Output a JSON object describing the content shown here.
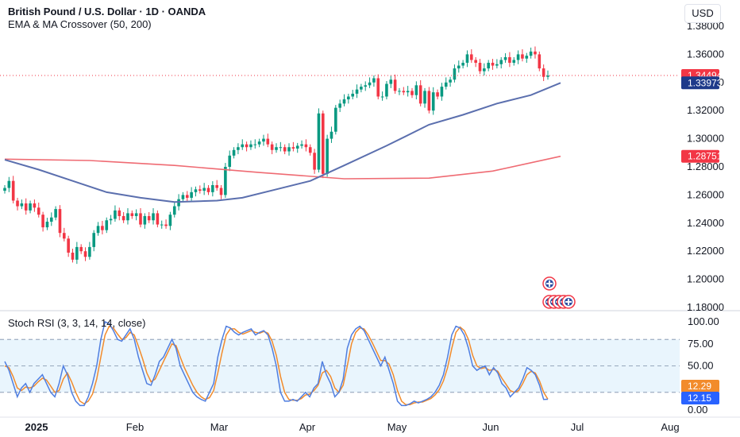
{
  "header": {
    "title": "British Pound / U.S. Dollar · 1D · OANDA",
    "indicator": "EMA & MA Crossover (50, 200)",
    "currency": "USD"
  },
  "stoch_legend": "Stoch RSI (3, 3, 14, 14, close)",
  "colors": {
    "up": "#089981",
    "down": "#f23645",
    "ema": "#5b6fae",
    "ma": "#ef6b73",
    "k": "#4f7ee0",
    "d": "#f28b2b",
    "band": "#e3f2fd"
  },
  "icons": [
    "uk-flag-icon"
  ],
  "chart_data": [
    {
      "type": "candlestick",
      "title": "British Pound / U.S. Dollar · 1D · OANDA",
      "ylim": [
        1.175,
        1.39
      ],
      "y_ticks": [
        "1.38000",
        "1.36000",
        "1.34000",
        "1.32000",
        "1.30000",
        "1.28000",
        "1.26000",
        "1.24000",
        "1.22000",
        "1.20000",
        "1.18000"
      ],
      "x_ticks": [
        "2025",
        "Feb",
        "Mar",
        "Apr",
        "May",
        "Jun",
        "Jul",
        "Aug"
      ],
      "closes": [
        1.265,
        1.27,
        1.256,
        1.252,
        1.254,
        1.249,
        1.254,
        1.251,
        1.246,
        1.237,
        1.241,
        1.244,
        1.25,
        1.233,
        1.229,
        1.219,
        1.214,
        1.223,
        1.22,
        1.216,
        1.223,
        1.233,
        1.238,
        1.235,
        1.242,
        1.243,
        1.249,
        1.245,
        1.242,
        1.247,
        1.245,
        1.247,
        1.239,
        1.245,
        1.242,
        1.247,
        1.239,
        1.239,
        1.238,
        1.246,
        1.252,
        1.257,
        1.26,
        1.258,
        1.262,
        1.264,
        1.263,
        1.265,
        1.262,
        1.267,
        1.265,
        1.26,
        1.28,
        1.288,
        1.292,
        1.294,
        1.296,
        1.294,
        1.296,
        1.296,
        1.298,
        1.3,
        1.296,
        1.292,
        1.294,
        1.294,
        1.291,
        1.294,
        1.293,
        1.295,
        1.296,
        1.294,
        1.29,
        1.278,
        1.318,
        1.275,
        1.3,
        1.305,
        1.322,
        1.325,
        1.328,
        1.33,
        1.332,
        1.335,
        1.337,
        1.338,
        1.34,
        1.343,
        1.33,
        1.33,
        1.339,
        1.342,
        1.334,
        1.334,
        1.333,
        1.334,
        1.331,
        1.338,
        1.325,
        1.334,
        1.32,
        1.333,
        1.33,
        1.337,
        1.34,
        1.342,
        1.35,
        1.352,
        1.354,
        1.36,
        1.356,
        1.354,
        1.348,
        1.35,
        1.354,
        1.352,
        1.353,
        1.356,
        1.358,
        1.354,
        1.356,
        1.36,
        1.357,
        1.359,
        1.362,
        1.36,
        1.35,
        1.344,
        1.3449
      ],
      "series": [
        {
          "name": "EMA (50)",
          "values_at": [
            [
              0,
              1.285
            ],
            [
              8,
              1.278
            ],
            [
              16,
              1.27
            ],
            [
              24,
              1.262
            ],
            [
              32,
              1.258
            ],
            [
              40,
              1.255
            ],
            [
              50,
              1.256
            ],
            [
              56,
              1.258
            ],
            [
              64,
              1.264
            ],
            [
              72,
              1.27
            ],
            [
              80,
              1.281
            ],
            [
              90,
              1.295
            ],
            [
              100,
              1.31
            ],
            [
              108,
              1.317
            ],
            [
              116,
              1.325
            ],
            [
              124,
              1.331
            ],
            [
              131,
              1.3397
            ]
          ]
        },
        {
          "name": "MA (200)",
          "values_at": [
            [
              0,
              1.2855
            ],
            [
              20,
              1.2845
            ],
            [
              40,
              1.281
            ],
            [
              60,
              1.276
            ],
            [
              80,
              1.2715
            ],
            [
              100,
              1.272
            ],
            [
              115,
              1.277
            ],
            [
              131,
              1.2875
            ]
          ]
        }
      ],
      "last_price": "1.34494",
      "ema_value": "1.33973",
      "ma_value": "1.28751",
      "annotations": [
        {
          "type": "event",
          "icon": "uk-flag-icon",
          "count": 1,
          "y": 1.197
        },
        {
          "type": "event",
          "icon": "uk-flag-icon",
          "count": 5,
          "y": 1.184
        }
      ]
    },
    {
      "type": "line",
      "title": "Stoch RSI (3, 3, 14, 14, close)",
      "ylim": [
        -5,
        105
      ],
      "y_ticks": [
        "100.00",
        "75.00",
        "50.00",
        "0.00"
      ],
      "bands": [
        20,
        50,
        80
      ],
      "series": [
        {
          "name": "K",
          "values": [
            55,
            45,
            30,
            15,
            25,
            30,
            20,
            30,
            35,
            40,
            30,
            20,
            15,
            30,
            50,
            40,
            20,
            10,
            5,
            5,
            15,
            30,
            50,
            80,
            100,
            98,
            90,
            80,
            78,
            85,
            92,
            80,
            60,
            45,
            30,
            28,
            40,
            55,
            60,
            70,
            80,
            70,
            50,
            40,
            30,
            20,
            15,
            12,
            10,
            20,
            30,
            60,
            80,
            95,
            93,
            88,
            85,
            88,
            90,
            92,
            85,
            88,
            90,
            85,
            70,
            50,
            20,
            10,
            10,
            12,
            10,
            15,
            20,
            15,
            25,
            30,
            55,
            40,
            30,
            15,
            20,
            35,
            70,
            85,
            92,
            95,
            90,
            80,
            70,
            60,
            50,
            60,
            45,
            30,
            10,
            5,
            5,
            7,
            10,
            8,
            10,
            12,
            15,
            20,
            28,
            40,
            60,
            85,
            95,
            93,
            85,
            70,
            50,
            45,
            48,
            50,
            40,
            48,
            42,
            30,
            25,
            15,
            20,
            25,
            35,
            48,
            45,
            40,
            28,
            12,
            12.15
          ]
        },
        {
          "name": "D",
          "values": [
            50,
            48,
            38,
            25,
            22,
            26,
            25,
            27,
            32,
            36,
            34,
            27,
            20,
            22,
            35,
            42,
            32,
            20,
            10,
            7,
            10,
            18,
            35,
            60,
            85,
            95,
            93,
            86,
            80,
            82,
            88,
            85,
            72,
            58,
            42,
            32,
            35,
            45,
            55,
            65,
            75,
            73,
            60,
            48,
            38,
            28,
            20,
            15,
            12,
            14,
            22,
            42,
            65,
            85,
            92,
            92,
            88,
            86,
            88,
            90,
            88,
            87,
            89,
            87,
            78,
            62,
            38,
            20,
            12,
            11,
            11,
            13,
            17,
            18,
            22,
            28,
            42,
            45,
            38,
            25,
            20,
            28,
            50,
            75,
            88,
            93,
            92,
            85,
            76,
            66,
            56,
            56,
            52,
            40,
            22,
            10,
            6,
            6,
            8,
            9,
            9,
            11,
            13,
            17,
            23,
            33,
            48,
            70,
            88,
            94,
            90,
            80,
            62,
            50,
            47,
            48,
            45,
            46,
            44,
            36,
            29,
            22,
            20,
            22,
            30,
            40,
            44,
            42,
            33,
            20,
            12.29
          ]
        }
      ],
      "k_value": "12.15",
      "d_value": "12.29"
    }
  ]
}
